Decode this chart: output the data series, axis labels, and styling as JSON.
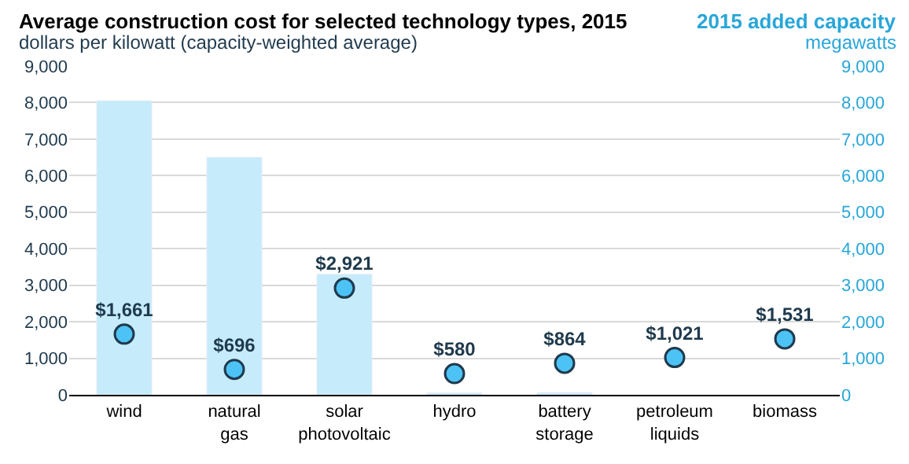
{
  "chart_data": {
    "type": "bar",
    "title": "Average construction cost for selected technology types, 2015",
    "ylabel": "dollars per kilowatt (capacity-weighted average)",
    "y2label": "megawatts",
    "annotations": [
      "2015 added capacity"
    ],
    "categories": [
      "wind",
      "natural gas",
      "solar photovoltaic",
      "hydro",
      "battery storage",
      "petroleum liquids",
      "biomass"
    ],
    "series": [
      {
        "axis": "y2",
        "color": "#c6ebfb",
        "values": [
          8050,
          6500,
          3300,
          50,
          60,
          null,
          null
        ]
      },
      {
        "type": "scatter",
        "axis": "y",
        "color": "#4dc3f5",
        "marker": "circle",
        "values": [
          1661,
          696,
          2921,
          580,
          864,
          1021,
          1531
        ],
        "value_labels": [
          "$1,661",
          "$696",
          "$2,921",
          "$580",
          "$864",
          "$1,021",
          "$1,531"
        ]
      }
    ],
    "ylim": [
      0,
      9000
    ],
    "yticks": [
      0,
      {
        "value": 1000,
        "label": "1,000"
      },
      {
        "value": 2000,
        "label": "2,000"
      },
      {
        "value": 3000,
        "label": "3,000"
      },
      {
        "value": 4000,
        "label": "4,000"
      },
      {
        "value": 5000,
        "label": "5,000"
      },
      {
        "value": 6000,
        "label": "6,000"
      },
      {
        "value": 7000,
        "label": "7,000"
      },
      {
        "value": 8000,
        "label": "8,000"
      },
      {
        "value": 9000,
        "label": "9,000"
      }
    ],
    "y2lim": [
      0,
      9000
    ],
    "y2ticks": [
      0,
      {
        "value": 1000,
        "label": "1,000"
      },
      {
        "value": 2000,
        "label": "2,000"
      },
      {
        "value": 3000,
        "label": "3,000"
      },
      {
        "value": 4000,
        "label": "4,000"
      },
      {
        "value": 5000,
        "label": "5,000"
      },
      {
        "value": 6000,
        "label": "6,000"
      },
      {
        "value": 7000,
        "label": "7,000"
      },
      {
        "value": 8000,
        "label": "8,000"
      },
      {
        "value": 9000,
        "label": "9,000"
      }
    ],
    "grid": "y"
  }
}
